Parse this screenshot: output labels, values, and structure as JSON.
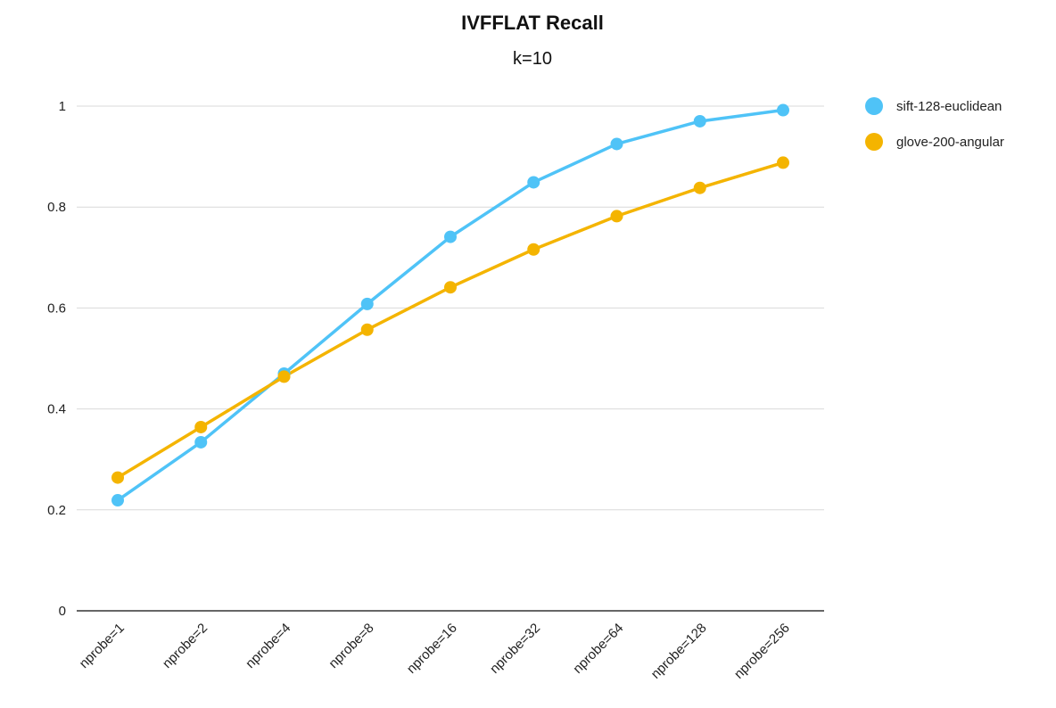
{
  "chart_data": {
    "type": "line",
    "title": "IVFFLAT Recall",
    "subtitle": "k=10",
    "xlabel": "",
    "ylabel": "",
    "categories": [
      "nprobe=1",
      "nprobe=2",
      "nprobe=4",
      "nprobe=8",
      "nprobe=16",
      "nprobe=32",
      "nprobe=64",
      "nprobe=128",
      "nprobe=256"
    ],
    "ylim": [
      0,
      1
    ],
    "yticks": [
      0,
      0.2,
      0.4,
      0.6,
      0.8,
      1
    ],
    "ytick_labels": [
      "0",
      "0.2",
      "0.4",
      "0.6",
      "0.8",
      "1"
    ],
    "grid": true,
    "legend_position": "right",
    "series": [
      {
        "name": "sift-128-euclidean",
        "color": "#4fc3f7",
        "values": [
          0.219,
          0.334,
          0.47,
          0.608,
          0.741,
          0.849,
          0.925,
          0.97,
          0.992
        ]
      },
      {
        "name": "glove-200-angular",
        "color": "#f4b400",
        "values": [
          0.264,
          0.364,
          0.464,
          0.557,
          0.641,
          0.716,
          0.782,
          0.838,
          0.888
        ]
      }
    ]
  }
}
